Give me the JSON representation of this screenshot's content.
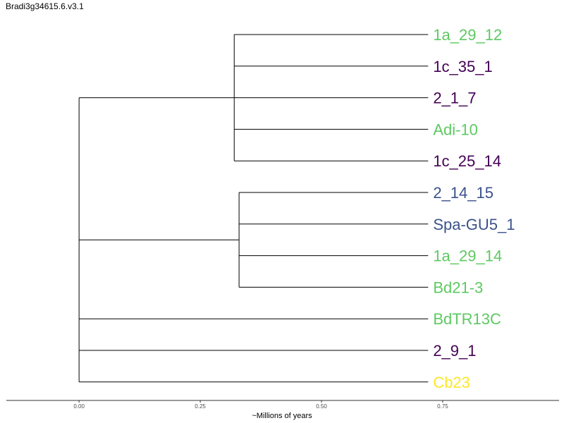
{
  "title": "Bradi3g34615.6.v3.1",
  "colors": {
    "green": "#5ec962",
    "purple": "#440154",
    "blue": "#3b528b",
    "yellow": "#fde725",
    "branch": "#000000"
  },
  "chart_data": {
    "type": "dendrogram",
    "xlabel": "~Millions of years",
    "xlim": [
      -0.15,
      0.99
    ],
    "x_ticks": [
      0.0,
      0.25,
      0.5,
      0.75
    ],
    "x_tick_labels": [
      "0.00",
      "0.25",
      "0.50",
      "0.75"
    ],
    "root_x": 0.0,
    "tip_x": 0.72,
    "tree": {
      "x": 0.0,
      "children": [
        {
          "x": 0.32,
          "children": [
            {
              "label": "1a_29_12",
              "color": "green"
            },
            {
              "label": "1c_35_1",
              "color": "purple"
            },
            {
              "label": "2_1_7",
              "color": "purple"
            },
            {
              "label": "Adi-10",
              "color": "green"
            },
            {
              "label": "1c_25_14",
              "color": "purple"
            }
          ]
        },
        {
          "x": 0.33,
          "children": [
            {
              "label": "2_14_15",
              "color": "blue"
            },
            {
              "label": "Spa-GU5_1",
              "color": "blue"
            },
            {
              "label": "1a_29_14",
              "color": "green"
            },
            {
              "label": "Bd21-3",
              "color": "green"
            }
          ]
        },
        {
          "label": "BdTR13C",
          "color": "green"
        },
        {
          "label": "2_9_1",
          "color": "purple"
        },
        {
          "label": "Cb23",
          "color": "yellow"
        }
      ]
    }
  }
}
